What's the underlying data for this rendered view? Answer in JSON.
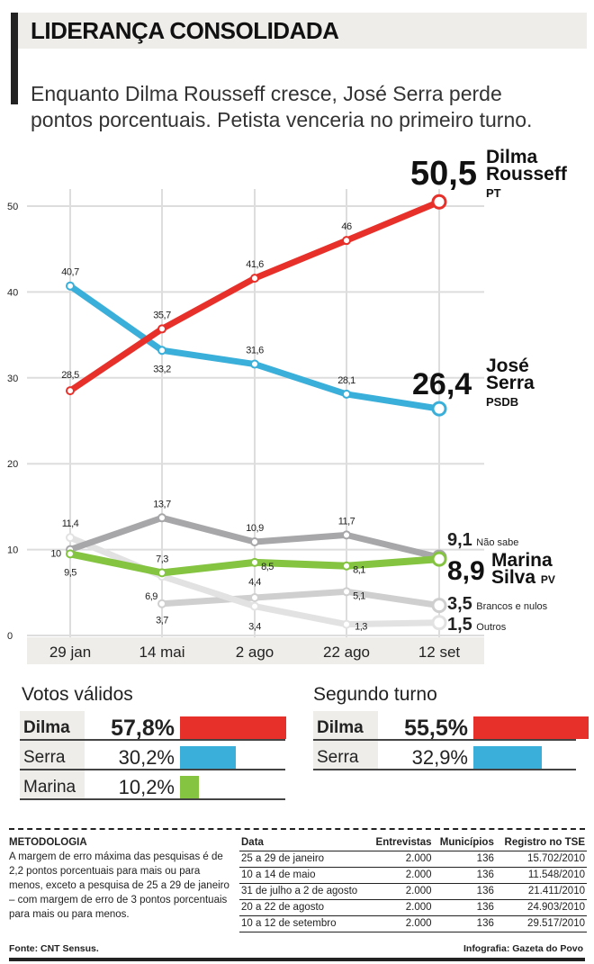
{
  "header": {
    "title": "LIDERANÇA CONSOLIDADA",
    "subtitle": "Enquanto Dilma Rousseff cresce, José Serra perde pontos porcentuais. Petista venceria no primeiro turno."
  },
  "chart_data": {
    "type": "line",
    "categories": [
      "29 jan",
      "14 mai",
      "2 ago",
      "22 ago",
      "12 set"
    ],
    "ylim": [
      0,
      50
    ],
    "yticks": [
      0,
      10,
      20,
      30,
      40,
      50
    ],
    "grid": true,
    "series": [
      {
        "name": "Dilma Rousseff",
        "party": "PT",
        "color": "#e8302a",
        "values": [
          28.5,
          35.7,
          41.6,
          46,
          50.5
        ],
        "labels": [
          "28,5",
          "35,7",
          "41,6",
          "46",
          "50,5"
        ]
      },
      {
        "name": "José Serra",
        "party": "PSDB",
        "color": "#3aafd9",
        "values": [
          40.7,
          33.2,
          31.6,
          28.1,
          26.4
        ],
        "labels": [
          "40,7",
          "33,2",
          "31,6",
          "28,1",
          "26,4"
        ]
      },
      {
        "name": "Não sabe",
        "color": "#a7a7aa",
        "values": [
          10,
          13.7,
          10.9,
          11.7,
          9.1
        ],
        "labels": [
          "10",
          "13,7",
          "10,9",
          "11,7",
          "9,1"
        ]
      },
      {
        "name": "Outros",
        "color": "#e2e2e2",
        "values": [
          11.4,
          6.9,
          3.4,
          1.3,
          1.5
        ],
        "labels": [
          "11,4",
          "6,9",
          "3,4",
          "1,3",
          "1,5"
        ]
      },
      {
        "name": "Brancos e nulos",
        "color": "#cfcfd0",
        "values": [
          null,
          3.7,
          4.4,
          5.1,
          3.5
        ],
        "labels": [
          "",
          "3,7",
          "4,4",
          "5,1",
          "3,5"
        ]
      },
      {
        "name": "Marina Silva",
        "party": "PV",
        "color": "#84c440",
        "values": [
          9.5,
          7.3,
          8.5,
          8.1,
          8.9
        ],
        "labels": [
          "9,5",
          "7,3",
          "8,5",
          "8,1",
          "8,9"
        ]
      }
    ],
    "end_labels": {
      "dilma": {
        "value": "50,5",
        "name1": "Dilma",
        "name2": "Rousseff",
        "party": "PT"
      },
      "serra": {
        "value": "26,4",
        "name1": "José",
        "name2": "Serra",
        "party": "PSDB"
      },
      "naosabe": {
        "value": "9,1",
        "name": "Não sabe"
      },
      "marina": {
        "value": "8,9",
        "name1": "Marina",
        "name2": "Silva",
        "party": "PV"
      },
      "brancos": {
        "value": "3,5",
        "name": "Brancos e nulos"
      },
      "outros": {
        "value": "1,5",
        "name": "Outros"
      }
    }
  },
  "votos_validos": {
    "title": "Votos válidos",
    "rows": [
      {
        "name": "Dilma",
        "pct": "57,8%",
        "value": 57.8,
        "color": "#e8302a"
      },
      {
        "name": "Serra",
        "pct": "30,2%",
        "value": 30.2,
        "color": "#3aafd9"
      },
      {
        "name": "Marina",
        "pct": "10,2%",
        "value": 10.2,
        "color": "#84c440"
      }
    ]
  },
  "segundo_turno": {
    "title": "Segundo turno",
    "rows": [
      {
        "name": "Dilma",
        "pct": "55,5%",
        "value": 55.5,
        "color": "#e8302a"
      },
      {
        "name": "Serra",
        "pct": "32,9%",
        "value": 32.9,
        "color": "#3aafd9"
      }
    ]
  },
  "metodologia": {
    "title": "METODOLOGIA",
    "text": "A margem de erro máxima das pesquisas é de 2,2 pontos porcentuais para mais ou para menos, exceto a pesquisa de 25 a 29 de janeiro – com margem de erro de 3 pontos porcentuais para mais ou para menos.",
    "fonte": "Fonte: CNT Sensus.",
    "credito": "Infografia: Gazeta do Povo"
  },
  "tabela": {
    "headers": [
      "Data",
      "Entrevistas",
      "Municípios",
      "Registro no TSE"
    ],
    "rows": [
      [
        "25 a 29 de janeiro",
        "2.000",
        "136",
        "15.702/2010"
      ],
      [
        "10 a 14 de maio",
        "2.000",
        "136",
        "11.548/2010"
      ],
      [
        "31 de julho a 2 de agosto",
        "2.000",
        "136",
        "21.411/2010"
      ],
      [
        "20 a 22 de agosto",
        "2.000",
        "136",
        "24.903/2010"
      ],
      [
        "10 a 12 de setembro",
        "2.000",
        "136",
        "29.517/2010"
      ]
    ]
  }
}
